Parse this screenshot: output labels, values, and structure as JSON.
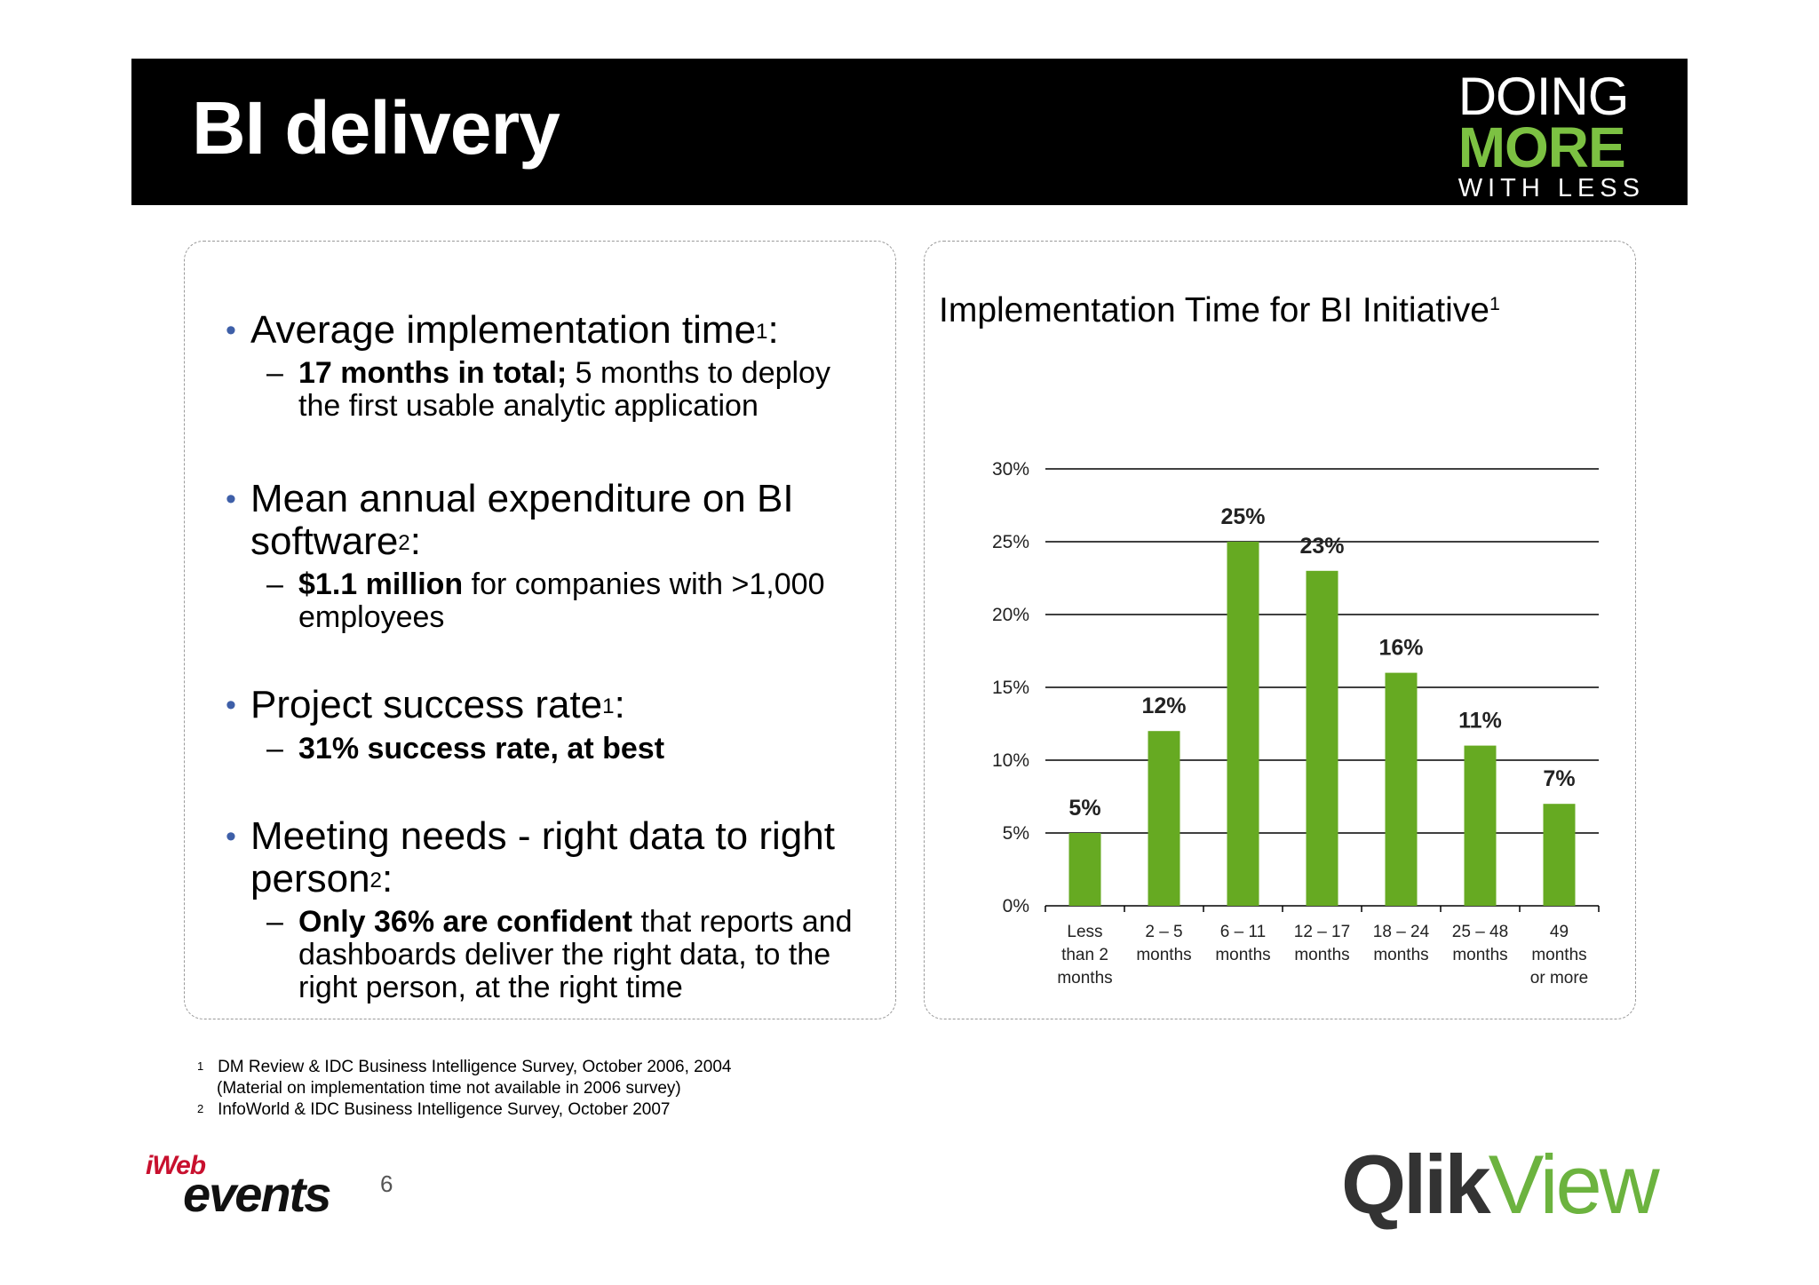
{
  "header": {
    "title": "BI delivery",
    "badge": {
      "line1": "DOING",
      "line2": "MORE",
      "line3": "WITH LESS"
    }
  },
  "left": {
    "b1": {
      "text": "Average implementation time",
      "sup": "1",
      "tail": ":"
    },
    "b1s": {
      "bold": "17 months in total;",
      "rest": " 5 months to deploy",
      "line2": "the first usable analytic application"
    },
    "b2": {
      "line1": "Mean annual expenditure on BI",
      "line2": "software",
      "sup": "2",
      "tail": ":"
    },
    "b2s": {
      "bold": "$1.1 million",
      "rest": " for companies with >1,000",
      "line2": "employees"
    },
    "b3": {
      "text": "Project success rate",
      "sup": "1",
      "tail": ":"
    },
    "b3s": {
      "bold": "31% success rate, at best"
    },
    "b4": {
      "line1": "Meeting needs - right data to right",
      "line2": "person",
      "sup": "2",
      "tail": ":"
    },
    "b4s": {
      "bold": "Only 36% are confident",
      "rest": " that reports and",
      "line2": "dashboards deliver the right data, to the",
      "line3": "right person, at the right time"
    },
    "bullet_glyph": "•",
    "dash_glyph": "–"
  },
  "chart_title": {
    "text": "Implementation Time for BI Initiative",
    "sup": "1"
  },
  "chart_data": {
    "type": "bar",
    "categories": [
      [
        "Less",
        "than 2",
        "months"
      ],
      [
        "2 – 5",
        "months"
      ],
      [
        "6 – 11",
        "months"
      ],
      [
        "12 – 17",
        "months"
      ],
      [
        "18 – 24",
        "months"
      ],
      [
        "25 – 48",
        "months"
      ],
      [
        "49",
        "months",
        "or more"
      ]
    ],
    "values": [
      5,
      12,
      25,
      23,
      16,
      11,
      7
    ],
    "data_labels": [
      "5%",
      "12%",
      "25%",
      "23%",
      "16%",
      "11%",
      "7%"
    ],
    "y_ticks": [
      "0%",
      "5%",
      "10%",
      "15%",
      "20%",
      "25%",
      "30%"
    ],
    "ylim": [
      0,
      30
    ],
    "grid": true,
    "bar_color": "#66aa22"
  },
  "footnotes": {
    "n1": {
      "mark": "1",
      "text": "DM Review & IDC Business Intelligence Survey, October 2006, 2004"
    },
    "n1b": "(Material on implementation time not available in 2006 survey)",
    "n2": {
      "mark": "2",
      "text": "InfoWorld & IDC Business Intelligence Survey, October 2007"
    }
  },
  "footer": {
    "iweb_logo": {
      "top": "iWeb",
      "bottom": "events"
    },
    "page_number": "6",
    "qlik_logo": {
      "part1": "Qlik",
      "part2": "View"
    }
  }
}
